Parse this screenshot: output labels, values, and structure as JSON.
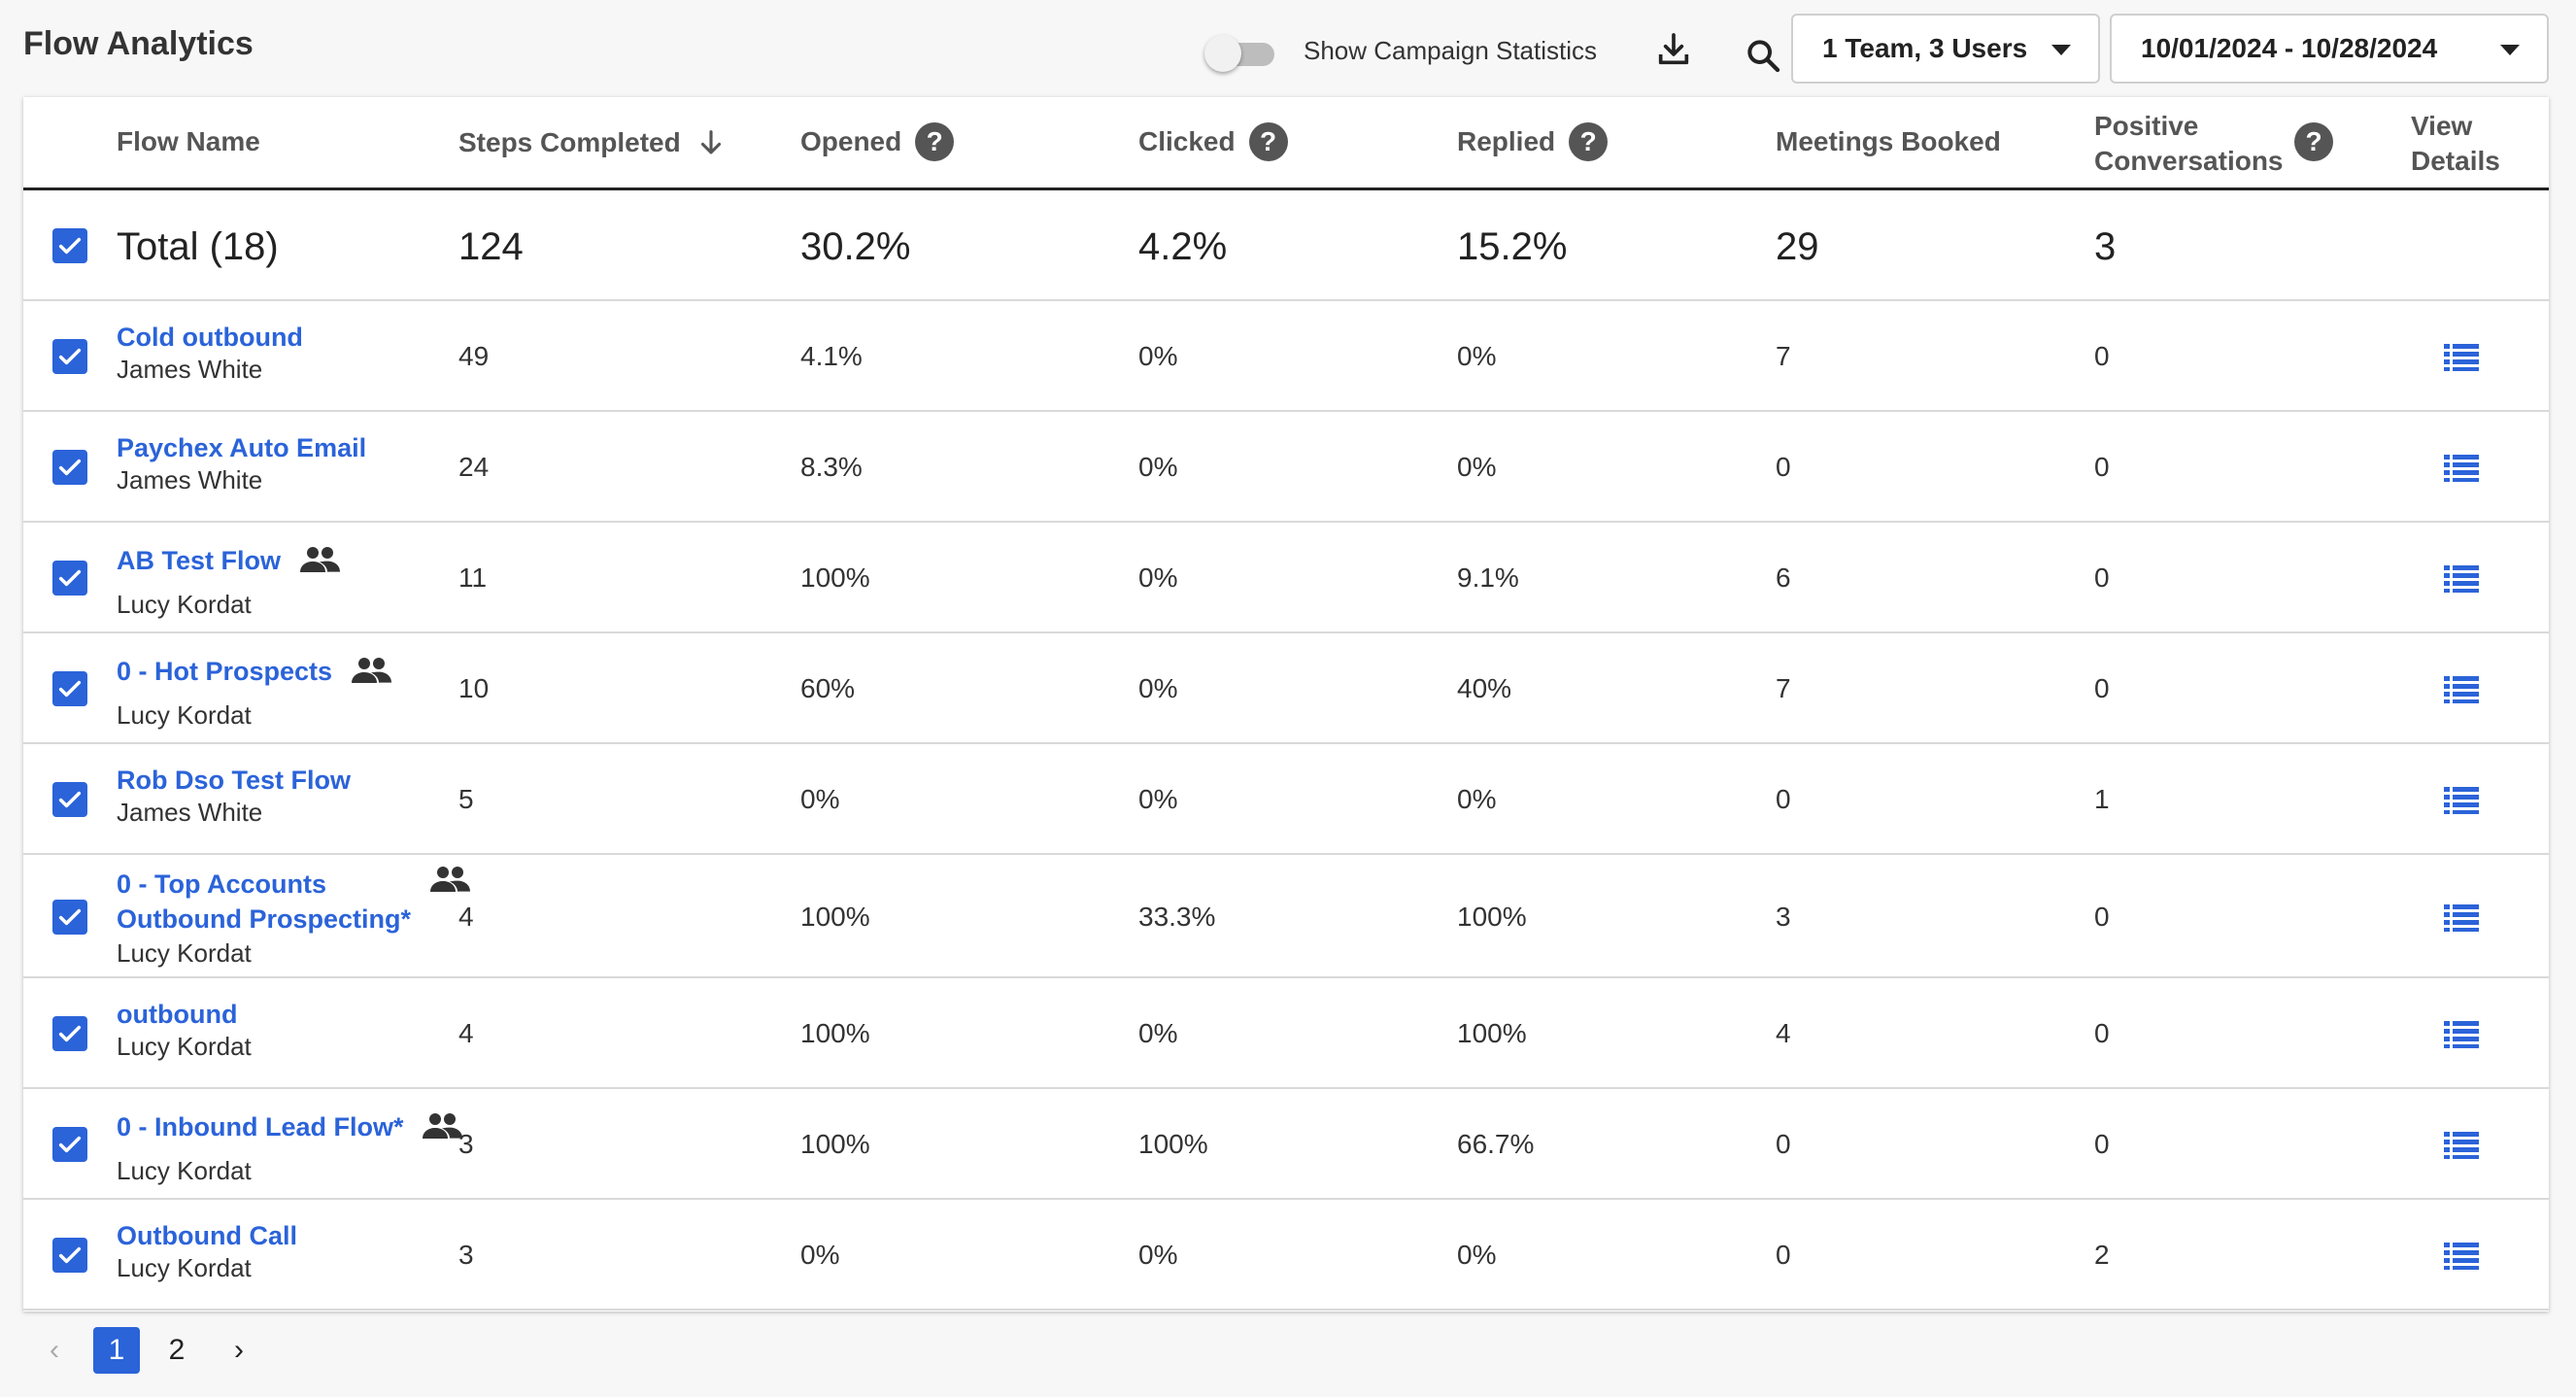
{
  "title": "Flow Analytics",
  "toolbar": {
    "toggle_label": "Show Campaign Statistics",
    "toggle_on": false,
    "team_filter": "1 Team, 3 Users",
    "date_range": "10/01/2024 - 10/28/2024"
  },
  "headers": {
    "flow_name": "Flow Name",
    "steps": "Steps Completed",
    "opened": "Opened",
    "clicked": "Clicked",
    "replied": "Replied",
    "meetings": "Meetings Booked",
    "positive_1": "Positive",
    "positive_2": "Conversations",
    "view_1": "View",
    "view_2": "Details",
    "help": "?"
  },
  "total": {
    "label": "Total (18)",
    "steps": "124",
    "opened": "30.2%",
    "clicked": "4.2%",
    "replied": "15.2%",
    "meetings": "29",
    "positive": "3"
  },
  "rows": [
    {
      "name": "Cold outbound",
      "name2": "",
      "owner": "James White",
      "team": false,
      "steps": "49",
      "opened": "4.1%",
      "clicked": "0%",
      "replied": "0%",
      "meetings": "7",
      "positive": "0"
    },
    {
      "name": "Paychex Auto Email",
      "name2": "",
      "owner": "James White",
      "team": false,
      "steps": "24",
      "opened": "8.3%",
      "clicked": "0%",
      "replied": "0%",
      "meetings": "0",
      "positive": "0"
    },
    {
      "name": "AB Test Flow",
      "name2": "",
      "owner": "Lucy Kordat",
      "team": true,
      "steps": "11",
      "opened": "100%",
      "clicked": "0%",
      "replied": "9.1%",
      "meetings": "6",
      "positive": "0"
    },
    {
      "name": "0 - Hot Prospects",
      "name2": "",
      "owner": "Lucy Kordat",
      "team": true,
      "steps": "10",
      "opened": "60%",
      "clicked": "0%",
      "replied": "40%",
      "meetings": "7",
      "positive": "0"
    },
    {
      "name": "Rob Dso Test Flow",
      "name2": "",
      "owner": "James White",
      "team": false,
      "steps": "5",
      "opened": "0%",
      "clicked": "0%",
      "replied": "0%",
      "meetings": "0",
      "positive": "1"
    },
    {
      "name": "0 - Top Accounts",
      "name2": "Outbound Prospecting*",
      "owner": "Lucy Kordat",
      "team": true,
      "steps": "4",
      "opened": "100%",
      "clicked": "33.3%",
      "replied": "100%",
      "meetings": "3",
      "positive": "0"
    },
    {
      "name": "outbound",
      "name2": "",
      "owner": "Lucy Kordat",
      "team": false,
      "steps": "4",
      "opened": "100%",
      "clicked": "0%",
      "replied": "100%",
      "meetings": "4",
      "positive": "0"
    },
    {
      "name": "0 - Inbound Lead Flow*",
      "name2": "",
      "owner": "Lucy Kordat",
      "team": true,
      "steps": "3",
      "opened": "100%",
      "clicked": "100%",
      "replied": "66.7%",
      "meetings": "0",
      "positive": "0"
    },
    {
      "name": "Outbound Call",
      "name2": "",
      "owner": "Lucy Kordat",
      "team": false,
      "steps": "3",
      "opened": "0%",
      "clicked": "0%",
      "replied": "0%",
      "meetings": "0",
      "positive": "2"
    }
  ],
  "pagination": {
    "prev": "‹",
    "pages": [
      "1",
      "2"
    ],
    "current": "1",
    "next": "›"
  },
  "colors": {
    "accent": "#2b63d9",
    "text": "#333333"
  }
}
